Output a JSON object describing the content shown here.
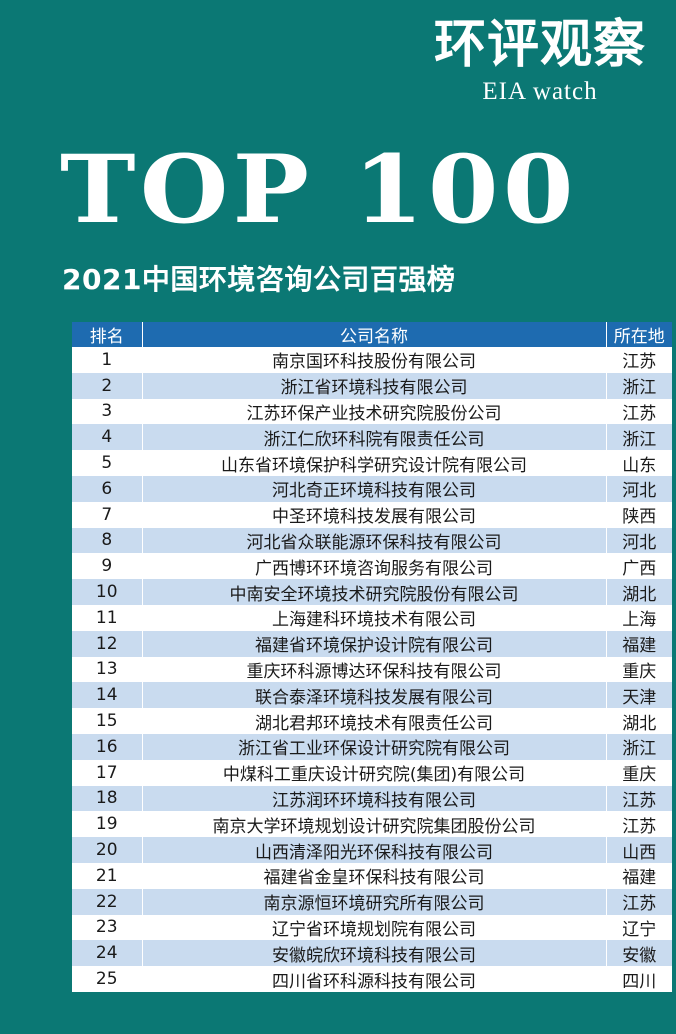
{
  "brand": {
    "cn": "环评观察",
    "en": "EIA watch"
  },
  "headline": "TOP 100",
  "subtitle": "2021中国环境咨询公司百强榜",
  "table": {
    "headers": [
      "排名",
      "公司名称",
      "所在地"
    ],
    "rows": [
      {
        "rank": "1",
        "name": "南京国环科技股份有限公司",
        "location": "江苏"
      },
      {
        "rank": "2",
        "name": "浙江省环境科技有限公司",
        "location": "浙江"
      },
      {
        "rank": "3",
        "name": "江苏环保产业技术研究院股份公司",
        "location": "江苏"
      },
      {
        "rank": "4",
        "name": "浙江仁欣环科院有限责任公司",
        "location": "浙江"
      },
      {
        "rank": "5",
        "name": "山东省环境保护科学研究设计院有限公司",
        "location": "山东"
      },
      {
        "rank": "6",
        "name": "河北奇正环境科技有限公司",
        "location": "河北"
      },
      {
        "rank": "7",
        "name": "中圣环境科技发展有限公司",
        "location": "陕西"
      },
      {
        "rank": "8",
        "name": "河北省众联能源环保科技有限公司",
        "location": "河北"
      },
      {
        "rank": "9",
        "name": "广西博环环境咨询服务有限公司",
        "location": "广西"
      },
      {
        "rank": "10",
        "name": "中南安全环境技术研究院股份有限公司",
        "location": "湖北"
      },
      {
        "rank": "11",
        "name": "上海建科环境技术有限公司",
        "location": "上海"
      },
      {
        "rank": "12",
        "name": "福建省环境保护设计院有限公司",
        "location": "福建"
      },
      {
        "rank": "13",
        "name": "重庆环科源博达环保科技有限公司",
        "location": "重庆"
      },
      {
        "rank": "14",
        "name": "联合泰泽环境科技发展有限公司",
        "location": "天津"
      },
      {
        "rank": "15",
        "name": "湖北君邦环境技术有限责任公司",
        "location": "湖北"
      },
      {
        "rank": "16",
        "name": "浙江省工业环保设计研究院有限公司",
        "location": "浙江"
      },
      {
        "rank": "17",
        "name": "中煤科工重庆设计研究院(集团)有限公司",
        "location": "重庆"
      },
      {
        "rank": "18",
        "name": "江苏润环环境科技有限公司",
        "location": "江苏"
      },
      {
        "rank": "19",
        "name": "南京大学环境规划设计研究院集团股份公司",
        "location": "江苏"
      },
      {
        "rank": "20",
        "name": "山西清泽阳光环保科技有限公司",
        "location": "山西"
      },
      {
        "rank": "21",
        "name": "福建省金皇环保科技有限公司",
        "location": "福建"
      },
      {
        "rank": "22",
        "name": "南京源恒环境研究所有限公司",
        "location": "江苏"
      },
      {
        "rank": "23",
        "name": "辽宁省环境规划院有限公司",
        "location": "辽宁"
      },
      {
        "rank": "24",
        "name": "安徽皖欣环境科技有限公司",
        "location": "安徽"
      },
      {
        "rank": "25",
        "name": "四川省环科源科技有限公司",
        "location": "四川"
      }
    ]
  }
}
